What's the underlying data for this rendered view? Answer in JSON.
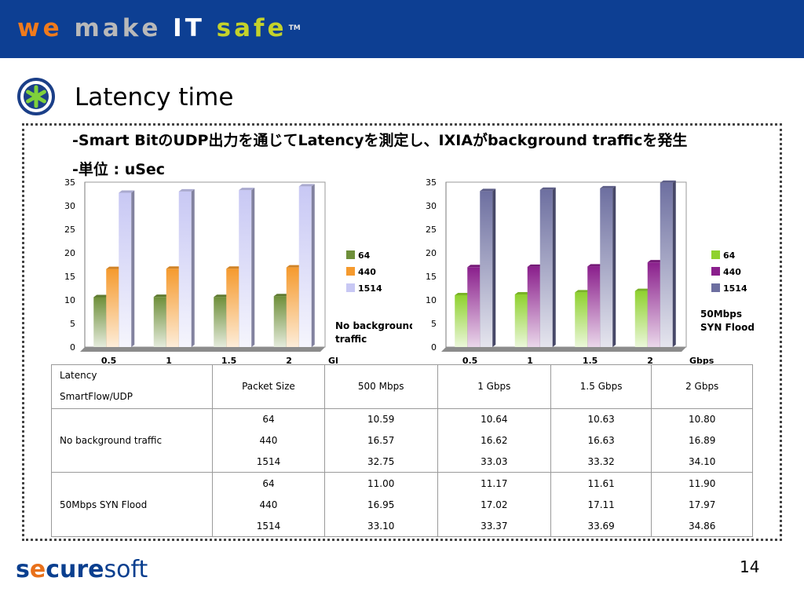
{
  "header": {
    "logo_letters": [
      {
        "ch": "w",
        "color": "#f07a1c"
      },
      {
        "ch": "e",
        "color": "#f07a1c"
      },
      {
        "ch": " ",
        "color": "#fff"
      },
      {
        "ch": "m",
        "color": "#b9b9b9"
      },
      {
        "ch": "a",
        "color": "#b9b9b9"
      },
      {
        "ch": "k",
        "color": "#b9b9b9"
      },
      {
        "ch": "e",
        "color": "#b9b9b9"
      },
      {
        "ch": " ",
        "color": "#fff"
      },
      {
        "ch": "I",
        "color": "#ffffff"
      },
      {
        "ch": "T",
        "color": "#ffffff"
      },
      {
        "ch": " ",
        "color": "#fff"
      },
      {
        "ch": "s",
        "color": "#c4d22b"
      },
      {
        "ch": "a",
        "color": "#c4d22b"
      },
      {
        "ch": "f",
        "color": "#c4d22b"
      },
      {
        "ch": "e",
        "color": "#c4d22b"
      }
    ],
    "tm": "TM",
    "bar_color": "#0d3f93"
  },
  "title": "Latency time",
  "bullets": [
    "-Smart BitのUDP出力を通じてLatencyを測定し、IXIAがbackground trafficを発生",
    "-単位 : uSec"
  ],
  "chart_data": [
    {
      "type": "bar",
      "categories": [
        "0.5",
        "1",
        "1.5",
        "2"
      ],
      "xlabel": "Gbps",
      "ylim": [
        0,
        35
      ],
      "yticks": [
        0,
        5,
        10,
        15,
        20,
        25,
        30,
        35
      ],
      "series": [
        {
          "name": "64",
          "values": [
            10.59,
            10.64,
            10.63,
            10.8
          ],
          "color": "#6e8f3a"
        },
        {
          "name": "440",
          "values": [
            16.57,
            16.62,
            16.63,
            16.89
          ],
          "color": "#f59a2e"
        },
        {
          "name": "1514",
          "values": [
            32.75,
            33.03,
            33.32,
            34.1
          ],
          "color": "#c8c8f4"
        }
      ],
      "annotation": [
        "No background",
        "traffic"
      ]
    },
    {
      "type": "bar",
      "categories": [
        "0.5",
        "1",
        "1.5",
        "2"
      ],
      "xlabel": "Gbps",
      "ylim": [
        0,
        35
      ],
      "yticks": [
        0,
        5,
        10,
        15,
        20,
        25,
        30,
        35
      ],
      "series": [
        {
          "name": "64",
          "values": [
            11.0,
            11.17,
            11.61,
            11.9
          ],
          "color": "#8fd12f"
        },
        {
          "name": "440",
          "values": [
            16.95,
            17.02,
            17.11,
            17.97
          ],
          "color": "#8a1f8c"
        },
        {
          "name": "1514",
          "values": [
            33.1,
            33.37,
            33.69,
            34.86
          ],
          "color": "#6d6fa0"
        }
      ],
      "annotation": [
        "50Mbps",
        "SYN Flood"
      ]
    }
  ],
  "table": {
    "header_left": [
      "Latency",
      "SmartFlow/UDP"
    ],
    "columns": [
      "Packet Size",
      "500 Mbps",
      "1 Gbps",
      "1.5 Gbps",
      "2 Gbps"
    ],
    "groups": [
      {
        "label": "No background traffic",
        "rows": [
          [
            "64",
            "10.59",
            "10.64",
            "10.63",
            "10.80"
          ],
          [
            "440",
            "16.57",
            "16.62",
            "16.63",
            "16.89"
          ],
          [
            "1514",
            "32.75",
            "33.03",
            "33.32",
            "34.10"
          ]
        ]
      },
      {
        "label": "50Mbps SYN Flood",
        "rows": [
          [
            "64",
            "11.00",
            "11.17",
            "11.61",
            "11.90"
          ],
          [
            "440",
            "16.95",
            "17.02",
            "17.11",
            "17.97"
          ],
          [
            "1514",
            "33.10",
            "33.37",
            "33.69",
            "34.86"
          ]
        ]
      }
    ]
  },
  "footer": {
    "logo_parts": [
      {
        "text": "s",
        "color": "#0a3f8f",
        "weight": "bold"
      },
      {
        "text": "e",
        "color": "#e8701a",
        "weight": "bold"
      },
      {
        "text": "cure",
        "color": "#0a3f8f",
        "weight": "bold"
      },
      {
        "text": "soft",
        "color": "#0a3f8f",
        "weight": "normal"
      }
    ],
    "page_number": "14"
  }
}
